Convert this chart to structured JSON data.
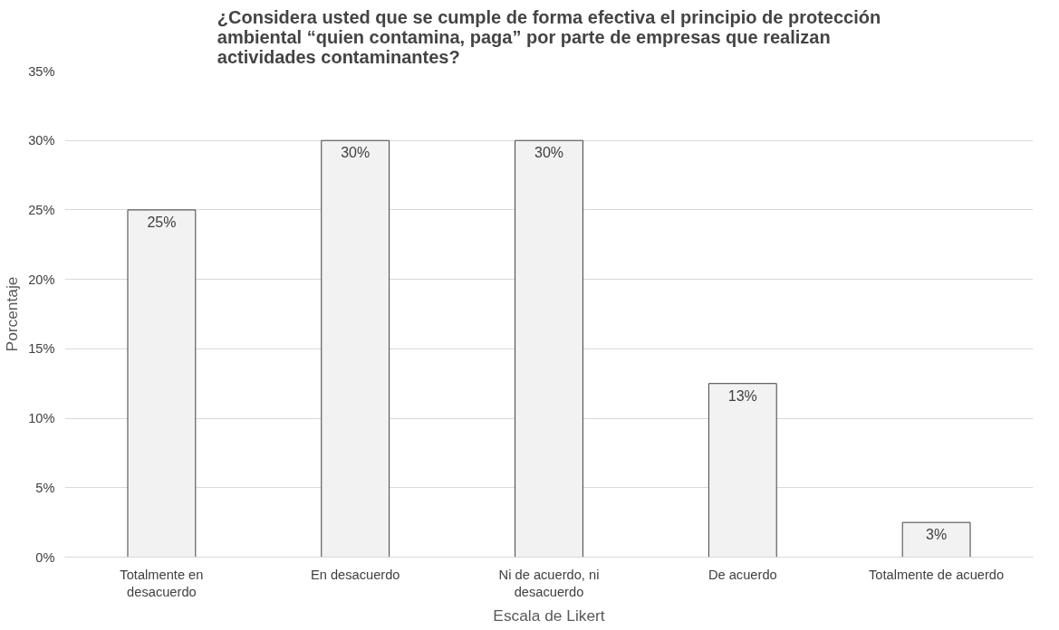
{
  "chart_data": {
    "type": "bar",
    "title": "¿Considera usted que se cumple de forma efectiva el principio de protección ambiental “quien contamina, paga” por parte de empresas que realizan actividades contaminantes?",
    "xlabel": "Escala de Likert",
    "ylabel": "Porcentaje",
    "categories": [
      "Totalmente en desacuerdo",
      "En desacuerdo",
      "Ni de acuerdo, ni desacuerdo",
      "De acuerdo",
      "Totalmente de acuerdo"
    ],
    "values": [
      25,
      30,
      30,
      12.5,
      2.5
    ],
    "value_labels": [
      "25%",
      "30%",
      "30%",
      "13%",
      "3%"
    ],
    "color": "#f2f2f2",
    "ylim": [
      0,
      35
    ],
    "yticks": [
      {
        "value": 0,
        "label": "0%"
      },
      {
        "value": 5,
        "label": "5%"
      },
      {
        "value": 10,
        "label": "10%"
      },
      {
        "value": 15,
        "label": "15%"
      },
      {
        "value": 20,
        "label": "20%"
      },
      {
        "value": 25,
        "label": "25%"
      },
      {
        "value": 30,
        "label": "30%"
      },
      {
        "value": 35,
        "label": "35%"
      }
    ],
    "grid": "y"
  }
}
